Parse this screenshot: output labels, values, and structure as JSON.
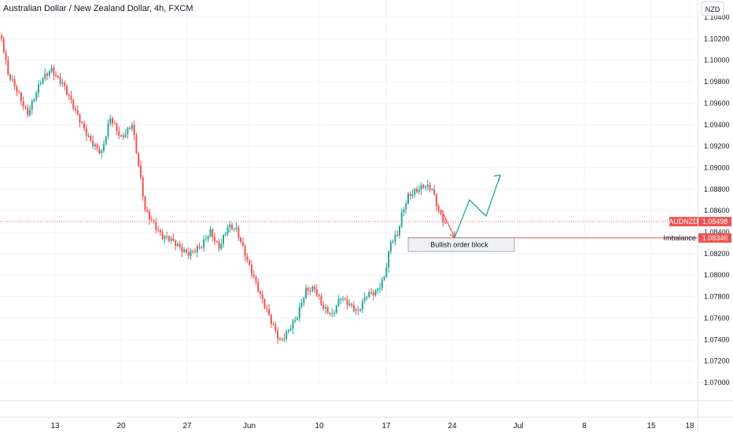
{
  "chart_data": {
    "type": "candlestick",
    "title": "Australian Dollar / New Zealand Dollar, 4h, FXCM",
    "currency": "NZD",
    "ylim": [
      1.07,
      1.104
    ],
    "y_ticks": [
      "1.10400",
      "1.10200",
      "1.10000",
      "1.09800",
      "1.09600",
      "1.09400",
      "1.09200",
      "1.09000",
      "1.08800",
      "1.08600",
      "1.08400",
      "1.08200",
      "1.08000",
      "1.07800",
      "1.07600",
      "1.07400",
      "1.07200",
      "1.07000"
    ],
    "x_ticks": [
      "13",
      "20",
      "27",
      "Jun",
      "10",
      "17",
      "24",
      "Jul",
      "8",
      "15",
      "18"
    ],
    "colors": {
      "up": "#26a69a",
      "down": "#ef5350",
      "price_line": "#ef5350",
      "arrow_green": "#26a69a",
      "grid": "#f0f3fa"
    },
    "symbol_badge": "AUDNZD",
    "last_price": "1.08498",
    "imbalance_label": "Imbalance",
    "imbalance_price": "1.08346",
    "order_block_label": "Bullish order block",
    "order_block_range": [
      1.0822,
      1.0835
    ],
    "anchors": [
      {
        "i": 0,
        "c": 1.102
      },
      {
        "i": 3,
        "c": 1.0985
      },
      {
        "i": 8,
        "c": 1.0968
      },
      {
        "i": 12,
        "c": 1.0952
      },
      {
        "i": 18,
        "c": 1.0978
      },
      {
        "i": 23,
        "c": 1.0992
      },
      {
        "i": 28,
        "c": 1.098
      },
      {
        "i": 34,
        "c": 1.095
      },
      {
        "i": 40,
        "c": 1.093
      },
      {
        "i": 46,
        "c": 1.0912
      },
      {
        "i": 50,
        "c": 1.0945
      },
      {
        "i": 55,
        "c": 1.093
      },
      {
        "i": 60,
        "c": 1.094
      },
      {
        "i": 63,
        "c": 1.09
      },
      {
        "i": 66,
        "c": 1.086
      },
      {
        "i": 70,
        "c": 1.085
      },
      {
        "i": 74,
        "c": 1.0836
      },
      {
        "i": 80,
        "c": 1.0828
      },
      {
        "i": 86,
        "c": 1.0822
      },
      {
        "i": 92,
        "c": 1.0825
      },
      {
        "i": 96,
        "c": 1.084
      },
      {
        "i": 100,
        "c": 1.0828
      },
      {
        "i": 104,
        "c": 1.0845
      },
      {
        "i": 108,
        "c": 1.084
      },
      {
        "i": 112,
        "c": 1.082
      },
      {
        "i": 116,
        "c": 1.08
      },
      {
        "i": 120,
        "c": 1.0775
      },
      {
        "i": 124,
        "c": 1.0755
      },
      {
        "i": 128,
        "c": 1.074
      },
      {
        "i": 132,
        "c": 1.075
      },
      {
        "i": 136,
        "c": 1.076
      },
      {
        "i": 140,
        "c": 1.0785
      },
      {
        "i": 144,
        "c": 1.079
      },
      {
        "i": 148,
        "c": 1.077
      },
      {
        "i": 152,
        "c": 1.076
      },
      {
        "i": 156,
        "c": 1.078
      },
      {
        "i": 160,
        "c": 1.0775
      },
      {
        "i": 164,
        "c": 1.0765
      },
      {
        "i": 168,
        "c": 1.078
      },
      {
        "i": 172,
        "c": 1.0785
      },
      {
        "i": 176,
        "c": 1.08
      },
      {
        "i": 179,
        "c": 1.083
      },
      {
        "i": 182,
        "c": 1.0835
      },
      {
        "i": 184,
        "c": 1.0855
      },
      {
        "i": 187,
        "c": 1.0875
      },
      {
        "i": 190,
        "c": 1.088
      },
      {
        "i": 194,
        "c": 1.0882
      },
      {
        "i": 198,
        "c": 1.0878
      },
      {
        "i": 201,
        "c": 1.086
      },
      {
        "i": 204,
        "c": 1.085
      }
    ],
    "forecast_path": [
      {
        "date_pos": "24",
        "y": 1.0835
      },
      {
        "date_pos": "",
        "y": 1.087
      },
      {
        "date_pos": "",
        "y": 1.0855
      },
      {
        "date_pos": "",
        "y": 1.0893
      }
    ]
  }
}
